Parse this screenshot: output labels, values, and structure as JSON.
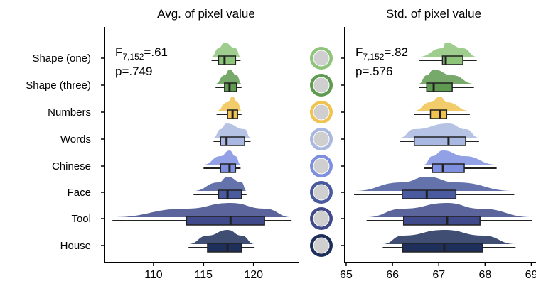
{
  "chart_data": [
    {
      "type": "boxplot",
      "title": "Avg. of pixel value",
      "annotation": {
        "stat": "F",
        "df": "7,152",
        "f_value": "=.61",
        "p_value": "p=.749"
      },
      "categories": [
        "Shape (one)",
        "Shape (three)",
        "Numbers",
        "Words",
        "Chinese",
        "Face",
        "Tool",
        "House"
      ],
      "colors": [
        "#8dc47a",
        "#5e9a50",
        "#f0c350",
        "#a9b8e0",
        "#7f8fe0",
        "#4a5a9e",
        "#404a8a",
        "#1e2f5c"
      ],
      "boxes": [
        {
          "min": 115.8,
          "q1": 116.5,
          "median": 117.1,
          "q3": 118.2,
          "max": 118.7
        },
        {
          "min": 116.2,
          "q1": 117.1,
          "median": 117.6,
          "q3": 118.3,
          "max": 118.8
        },
        {
          "min": 116.3,
          "q1": 117.4,
          "median": 117.9,
          "q3": 118.4,
          "max": 118.8
        },
        {
          "min": 116.0,
          "q1": 116.7,
          "median": 117.3,
          "q3": 119.1,
          "max": 119.7
        },
        {
          "min": 115.0,
          "q1": 116.7,
          "median": 117.6,
          "q3": 118.2,
          "max": 118.7
        },
        {
          "min": 114.0,
          "q1": 116.5,
          "median": 117.4,
          "q3": 118.8,
          "max": 119.3
        },
        {
          "min": 105.9,
          "q1": 113.3,
          "median": 117.7,
          "q3": 121.1,
          "max": 123.8
        },
        {
          "min": 113.5,
          "q1": 115.4,
          "median": 117.4,
          "q3": 118.8,
          "max": 120.1
        }
      ],
      "xlim": [
        105.1,
        124.5
      ],
      "xticks": [
        110,
        115,
        120
      ]
    },
    {
      "type": "boxplot",
      "title": "Std. of pixel value",
      "annotation": {
        "stat": "F",
        "df": "7,152",
        "f_value": "=.82",
        "p_value": "p=.576"
      },
      "categories": [
        "Shape (one)",
        "Shape (three)",
        "Numbers",
        "Words",
        "Chinese",
        "Face",
        "Tool",
        "House"
      ],
      "colors": [
        "#8dc47a",
        "#5e9a50",
        "#f0c350",
        "#a9b8e0",
        "#7f8fe0",
        "#4a5a9e",
        "#404a8a",
        "#1e2f5c"
      ],
      "boxes": [
        {
          "min": 66.57,
          "q1": 67.08,
          "median": 67.15,
          "q3": 67.52,
          "max": 67.82
        },
        {
          "min": 66.57,
          "q1": 66.74,
          "median": 66.89,
          "q3": 67.29,
          "max": 67.76
        },
        {
          "min": 66.47,
          "q1": 66.82,
          "median": 67.03,
          "q3": 67.17,
          "max": 67.67
        },
        {
          "min": 66.16,
          "q1": 66.47,
          "median": 67.21,
          "q3": 67.58,
          "max": 67.87
        },
        {
          "min": 66.68,
          "q1": 66.86,
          "median": 67.09,
          "q3": 67.55,
          "max": 68.25
        },
        {
          "min": 65.17,
          "q1": 66.21,
          "median": 66.74,
          "q3": 67.37,
          "max": 68.63
        },
        {
          "min": 65.44,
          "q1": 66.24,
          "median": 67.18,
          "q3": 67.89,
          "max": 69.02
        },
        {
          "min": 65.79,
          "q1": 66.22,
          "median": 67.12,
          "q3": 67.95,
          "max": 68.66
        }
      ],
      "xlim": [
        64.97,
        69.1
      ],
      "xticks": [
        65,
        66,
        67,
        68,
        69
      ]
    }
  ]
}
